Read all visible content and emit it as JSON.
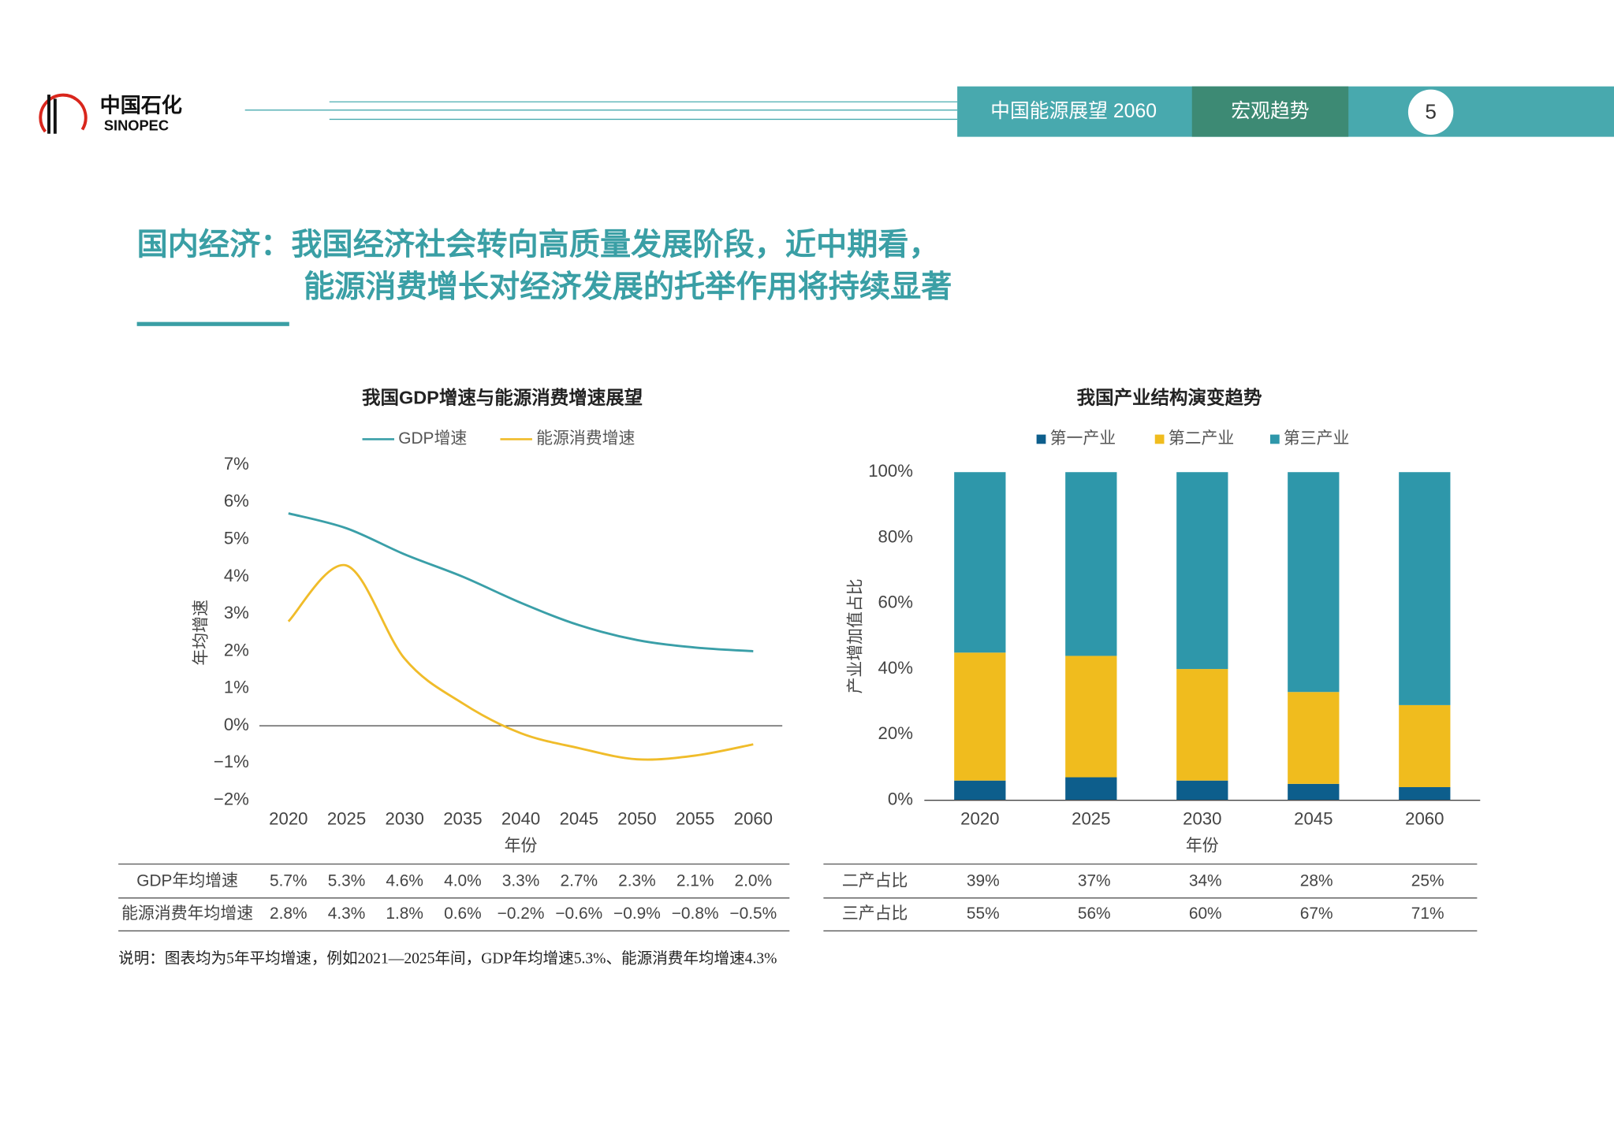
{
  "header": {
    "logo_cn": "中国石化",
    "logo_en": "SINOPEC",
    "report": "中国能源展望 2060",
    "section": "宏观趋势",
    "page": "5"
  },
  "title_lines": [
    "国内经济：我国经济社会转向高质量发展阶段，近中期看，",
    "能源消费增长对经济发展的托举作用将持续显著"
  ],
  "chart_data": [
    {
      "type": "line",
      "title": "我国GDP增速与能源消费增速展望",
      "x_label": "年份",
      "y_label": "年均增速",
      "x": [
        2020,
        2025,
        2030,
        2035,
        2040,
        2045,
        2050,
        2055,
        2060
      ],
      "xlim": [
        2017.5,
        2062.5
      ],
      "xticks": [
        2020,
        2025,
        2030,
        2035,
        2040,
        2045,
        2050,
        2055,
        2060
      ],
      "ylim": [
        -2,
        7
      ],
      "yticks": [
        {
          "value": -2,
          "label": "−2%"
        },
        {
          "value": -1,
          "label": "−1%"
        },
        {
          "value": 0,
          "label": "0%"
        },
        {
          "value": 1,
          "label": "1%"
        },
        {
          "value": 2,
          "label": "2%"
        },
        {
          "value": 3,
          "label": "3%"
        },
        {
          "value": 4,
          "label": "4%"
        },
        {
          "value": 5,
          "label": "5%"
        },
        {
          "value": 6,
          "label": "6%"
        },
        {
          "value": 7,
          "label": "7%"
        }
      ],
      "zero_line": true,
      "smooth": true,
      "legend": "top",
      "series": [
        {
          "name": "GDP增速",
          "color": "#3a9fa8",
          "values": [
            5.7,
            5.3,
            4.6,
            4.0,
            3.3,
            2.7,
            2.3,
            2.1,
            2.0
          ],
          "value_labels": [
            "5.7%",
            "5.3%",
            "4.6%",
            "4.0%",
            "3.3%",
            "2.7%",
            "2.3%",
            "2.1%",
            "2.0%"
          ]
        },
        {
          "name": "能源消费增速",
          "color": "#f0bc2a",
          "values": [
            2.8,
            4.3,
            1.8,
            0.6,
            -0.2,
            -0.6,
            -0.9,
            -0.8,
            -0.5
          ],
          "value_labels": [
            "2.8%",
            "4.3%",
            "1.8%",
            "0.6%",
            "−0.2%",
            "−0.6%",
            "−0.9%",
            "−0.8%",
            "−0.5%"
          ]
        }
      ]
    },
    {
      "type": "bar",
      "stacked": true,
      "title": "我国产业结构演变趋势",
      "x_label": "年份",
      "y_label": "产业增加值占比",
      "categories": [
        "2020",
        "2025",
        "2030",
        "2045",
        "2060"
      ],
      "ylim": [
        0,
        100
      ],
      "yticks": [
        {
          "value": 0,
          "label": "0%"
        },
        {
          "value": 20,
          "label": "20%"
        },
        {
          "value": 40,
          "label": "40%"
        },
        {
          "value": 60,
          "label": "60%"
        },
        {
          "value": 80,
          "label": "80%"
        },
        {
          "value": 100,
          "label": "100%"
        }
      ],
      "legend": "top",
      "series": [
        {
          "name": "第一产业",
          "color": "#0d5e8c",
          "values": [
            6,
            7,
            6,
            5,
            4
          ]
        },
        {
          "name": "第二产业",
          "color": "#f0bc1e",
          "values": [
            39,
            37,
            34,
            28,
            25
          ],
          "value_labels": [
            "39%",
            "37%",
            "34%",
            "28%",
            "25%"
          ]
        },
        {
          "name": "第三产业",
          "color": "#2e97aa",
          "values": [
            55,
            56,
            60,
            67,
            71
          ],
          "value_labels": [
            "55%",
            "56%",
            "60%",
            "67%",
            "71%"
          ]
        }
      ]
    }
  ],
  "tables": [
    {
      "rows": [
        {
          "label": "GDP年均增速"
        },
        {
          "label": "能源消费年均增速"
        }
      ]
    },
    {
      "rows": [
        {
          "label": "二产占比"
        },
        {
          "label": "三产占比"
        }
      ]
    }
  ],
  "note": "说明：图表均为5年平均增速，例如2021—2025年间，GDP年均增速5.3%、能源消费年均增速4.3%"
}
